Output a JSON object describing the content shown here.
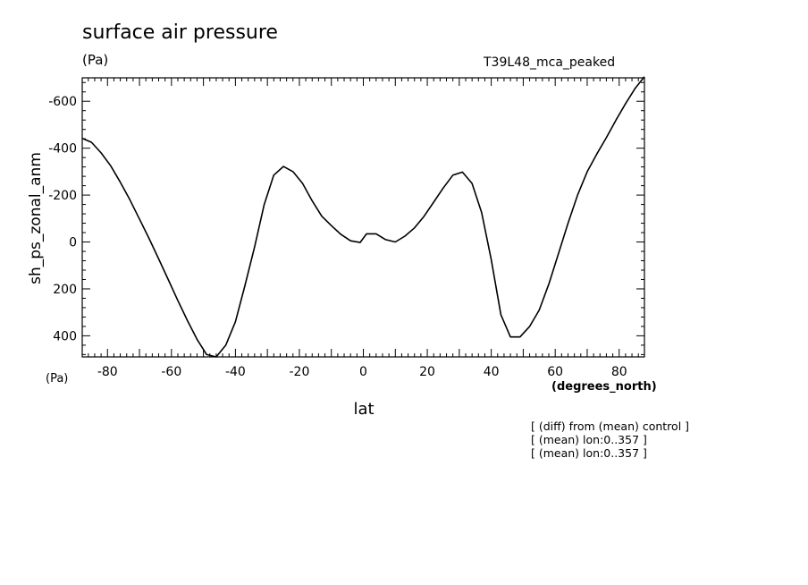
{
  "chart_data": {
    "type": "line",
    "title": "surface air pressure",
    "units": "(Pa)",
    "run_name": "T39L48_mca_peaked",
    "xlabel": "lat",
    "xunits": "(degrees_north)",
    "ylabel": "sh_ps_zonal_anm",
    "yunits": "(Pa)",
    "xlim": [
      -87.9,
      87.9
    ],
    "ylim": [
      490,
      -700
    ],
    "y_inverted": true,
    "x_ticks": [
      -80,
      -60,
      -40,
      -20,
      0,
      20,
      40,
      60,
      80
    ],
    "x_tick_labels": [
      "-80",
      "-60",
      "-40",
      "-20",
      "0",
      "20",
      "40",
      "60",
      "80"
    ],
    "y_ticks": [
      -600,
      -400,
      -200,
      0,
      200,
      400
    ],
    "y_tick_labels": [
      "-600",
      "-400",
      "-200",
      "0",
      "200",
      "400"
    ],
    "grid": false,
    "series": [
      {
        "x": [
          -87.9,
          -85,
          -82,
          -79,
          -76,
          -73,
          -70,
          -67,
          -64,
          -61,
          -58,
          -55,
          -52,
          -49,
          -46,
          -43,
          -40,
          -37,
          -34,
          -31,
          -28,
          -25,
          -22,
          -19,
          -16,
          -13,
          -10,
          -7,
          -4,
          -1,
          1,
          4,
          7,
          10,
          13,
          16,
          19,
          22,
          25,
          28,
          31,
          34,
          37,
          40,
          43,
          46,
          49,
          52,
          55,
          58,
          61,
          64,
          67,
          70,
          73,
          76,
          79,
          82,
          85,
          87.9
        ],
        "y": [
          -442,
          -425,
          -380,
          -325,
          -255,
          -180,
          -98,
          -15,
          72,
          160,
          250,
          335,
          415,
          480,
          490,
          440,
          340,
          185,
          20,
          -160,
          -285,
          -322,
          -300,
          -250,
          -175,
          -110,
          -70,
          -32,
          -5,
          2,
          -35,
          -35,
          -10,
          0,
          -25,
          -60,
          -110,
          -170,
          -230,
          -285,
          -298,
          -250,
          -125,
          75,
          310,
          405,
          405,
          360,
          290,
          180,
          50,
          -80,
          -200,
          -300,
          -375,
          -445,
          -520,
          -590,
          -655,
          -705
        ]
      }
    ],
    "annotations": [
      "[ (diff) from (mean) control ]",
      "[ (mean) lon:0..357 ]",
      "[ (mean) lon:0..357 ]"
    ]
  }
}
